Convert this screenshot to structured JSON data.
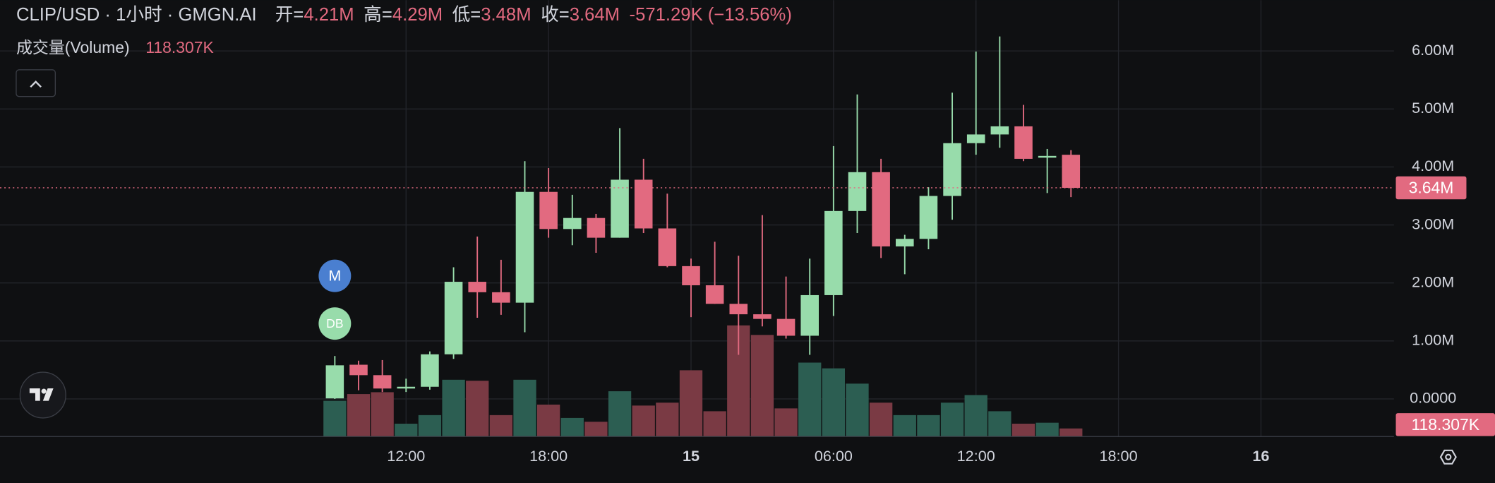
{
  "chart_data": {
    "type": "candlestick",
    "title": "CLIP/USD · 1小时 · GMGN.AI",
    "ohlc_legend": [
      {
        "label": "开=",
        "value": "4.21M"
      },
      {
        "label": "高=",
        "value": "4.29M"
      },
      {
        "label": "低=",
        "value": "3.48M"
      },
      {
        "label": "收=",
        "value": "3.64M"
      }
    ],
    "change": "-571.29K (−13.56%)",
    "volume_title": "成交量(Volume)",
    "volume_value_label": "118.307K",
    "last_price_label": "3.64M",
    "markers": [
      {
        "label": "M",
        "color": "#4a7fd0"
      },
      {
        "label": "DB",
        "color": "#98dcab"
      }
    ],
    "up_color": "#98dcab",
    "down_color": "#e26a80",
    "volume_up_color": "#2c5e52",
    "volume_down_color": "#7a3a44",
    "x": [
      9,
      10,
      11,
      12,
      13,
      14,
      15,
      16,
      17,
      18,
      19,
      20,
      21,
      22,
      23,
      24,
      25,
      26,
      27,
      28,
      29,
      30,
      31,
      32,
      33,
      34,
      35,
      36,
      37,
      38,
      39,
      40
    ],
    "open": [
      0.01,
      0.59,
      0.41,
      0.18,
      0.21,
      0.77,
      2.02,
      1.84,
      1.66,
      3.57,
      2.93,
      3.12,
      2.78,
      3.78,
      2.94,
      2.29,
      1.96,
      1.64,
      1.46,
      1.38,
      1.09,
      1.79,
      3.24,
      3.91,
      2.63,
      2.76,
      3.5,
      4.41,
      4.56,
      4.7,
      4.16,
      4.21
    ],
    "high": [
      0.74,
      0.66,
      0.67,
      0.35,
      0.82,
      2.27,
      2.8,
      2.4,
      4.1,
      3.98,
      3.52,
      3.19,
      4.67,
      4.14,
      3.54,
      2.42,
      2.71,
      2.47,
      3.17,
      2.11,
      2.42,
      4.36,
      5.25,
      4.14,
      2.83,
      3.65,
      5.28,
      5.99,
      6.25,
      5.07,
      4.31,
      4.29
    ],
    "low": [
      0.0,
      0.15,
      0.12,
      0.12,
      0.16,
      0.69,
      1.4,
      1.45,
      1.15,
      2.78,
      2.65,
      2.52,
      2.78,
      2.86,
      2.27,
      1.41,
      1.64,
      0.76,
      1.25,
      1.04,
      0.76,
      1.43,
      2.86,
      2.43,
      2.15,
      2.58,
      3.09,
      4.21,
      4.33,
      4.1,
      3.55,
      3.48
    ],
    "close": [
      0.58,
      0.41,
      0.18,
      0.21,
      0.77,
      2.02,
      1.84,
      1.66,
      3.57,
      2.93,
      3.12,
      2.78,
      3.78,
      2.94,
      2.29,
      1.96,
      1.64,
      1.46,
      1.38,
      1.09,
      1.79,
      3.24,
      3.91,
      2.63,
      2.76,
      3.5,
      4.41,
      4.56,
      4.7,
      4.14,
      4.19,
      3.64
    ],
    "volume": [
      547000,
      651000,
      680000,
      192000,
      325000,
      873000,
      858000,
      325000,
      873000,
      488000,
      281000,
      222000,
      695000,
      473000,
      518000,
      1020000,
      385000,
      1716000,
      1568000,
      429000,
      1139000,
      1050000,
      813000,
      518000,
      325000,
      325000,
      518000,
      636000,
      385000,
      192000,
      207000,
      118307
    ],
    "xlim": [
      -5.1,
      53.6
    ],
    "xticks": [
      {
        "value": 12,
        "label": "12:00"
      },
      {
        "value": 18,
        "label": "18:00"
      },
      {
        "value": 24,
        "label": "15"
      },
      {
        "value": 30,
        "label": "06:00"
      },
      {
        "value": 36,
        "label": "12:00"
      },
      {
        "value": 42,
        "label": "18:00"
      },
      {
        "value": 48,
        "label": "16"
      }
    ],
    "ylim": [
      -0.64,
      6.875
    ],
    "yticks": [
      {
        "value": 0,
        "label": "0.0000"
      },
      {
        "value": 1,
        "label": "1.00M"
      },
      {
        "value": 2,
        "label": "2.00M"
      },
      {
        "value": 3,
        "label": "3.00M"
      },
      {
        "value": 4,
        "label": "4.00M"
      },
      {
        "value": 5,
        "label": "5.00M"
      },
      {
        "value": 6,
        "label": "6.00M"
      }
    ],
    "volume_ylim": [
      0,
      1730000
    ],
    "grid": true
  }
}
